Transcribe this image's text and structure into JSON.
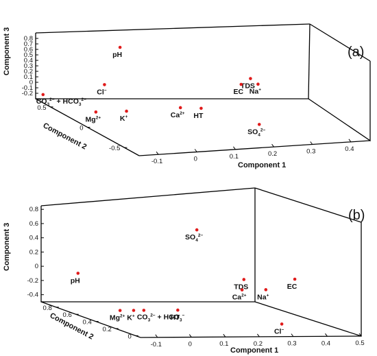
{
  "colors": {
    "points": "#e01b1b",
    "axes": "#000000",
    "background": "#ffffff"
  },
  "chart_data": [
    {
      "type": "scatter",
      "panel_label": "(a)",
      "title": "",
      "xlabel": "Component 1",
      "ylabel": "Component 2",
      "zlabel": "Component 3",
      "xlim": [
        -0.15,
        0.45
      ],
      "ylim": [
        -0.7,
        0.7
      ],
      "zlim": [
        -0.3,
        0.9
      ],
      "xticks": [
        "-0.1",
        "0",
        "0.1",
        "0.2",
        "0.3",
        "0.4"
      ],
      "yticks": [
        "-0.5",
        "0",
        "0.5"
      ],
      "zticks": [
        "-0.2",
        "-0.1",
        "0",
        "0.1",
        "0.2",
        "0.3",
        "0.4",
        "0.5",
        "0.6",
        "0.7",
        "0.8"
      ],
      "grid": false,
      "points": [
        {
          "label": "pH",
          "base": "pH",
          "sup": "",
          "x": 0.05,
          "y": 0.6,
          "z": 0.62
        },
        {
          "label": "Cl-",
          "base": "Cl",
          "sup": "−",
          "x": 0.0,
          "y": 0.55,
          "z": 0.0
        },
        {
          "label": "TDS",
          "base": "TDS",
          "sup": "",
          "x": 0.36,
          "y": 0.45,
          "z": 0.02
        },
        {
          "label": "EC",
          "base": "EC",
          "sup": "",
          "x": 0.33,
          "y": 0.42,
          "z": -0.05
        },
        {
          "label": "Na+",
          "base": "Na",
          "sup": "+",
          "x": 0.37,
          "y": 0.4,
          "z": -0.05
        },
        {
          "label": "Ca2+",
          "base": "Ca",
          "sup": "2+",
          "x": 0.13,
          "y": 0.2,
          "z": -0.22
        },
        {
          "label": "HT",
          "base": "HT",
          "sup": "",
          "x": 0.18,
          "y": 0.18,
          "z": -0.24
        },
        {
          "label": "K+",
          "base": "K",
          "sup": "+",
          "x": -0.01,
          "y": 0.2,
          "z": -0.22
        },
        {
          "label": "Mg2+",
          "base": "Mg",
          "sup": "2+",
          "x": -0.08,
          "y": 0.25,
          "z": -0.24
        },
        {
          "label": "CO32- + HCO32-",
          "base": "CO",
          "sup": "",
          "x": -0.15,
          "y": 0.6,
          "z": -0.15
        },
        {
          "label": "SO42-",
          "base": "SO",
          "sup": "2−",
          "x": 0.21,
          "y": -0.45,
          "z": -0.08
        }
      ],
      "special_labels": {
        "co3_text": "CO",
        "co3_sub": "3",
        "co3_sup": "2−",
        "plus": "+",
        "hco3_text": "HCO",
        "hco3_sub": "3",
        "hco3_sup": "2−",
        "so4_sub": "4"
      }
    },
    {
      "type": "scatter",
      "panel_label": "(b)",
      "title": "",
      "xlabel": "Component 1",
      "ylabel": "Component 2",
      "zlabel": "Component 3",
      "xlim": [
        -0.15,
        0.5
      ],
      "ylim": [
        -0.05,
        0.95
      ],
      "zlim": [
        -0.5,
        0.85
      ],
      "xticks": [
        "-0.1",
        "0",
        "0.1",
        "0.2",
        "0.3",
        "0.4",
        "0.5"
      ],
      "yticks": [
        "0",
        "0.2",
        "0.4",
        "0.6",
        "0.8"
      ],
      "zticks": [
        "-0.4",
        "-0.2",
        "0",
        "0.2",
        "0.4",
        "0.6",
        "0.8"
      ],
      "grid": false,
      "points": [
        {
          "label": "pH",
          "base": "pH",
          "sup": "",
          "x": -0.1,
          "y": 0.75,
          "z": 0.0
        },
        {
          "label": "SO42-",
          "base": "SO",
          "sup": "2−",
          "x": 0.25,
          "y": 0.75,
          "z": 0.6
        },
        {
          "label": "TDS",
          "base": "TDS",
          "sup": "",
          "x": 0.33,
          "y": 0.55,
          "z": 0.0
        },
        {
          "label": "EC",
          "base": "EC",
          "sup": "",
          "x": 0.48,
          "y": 0.55,
          "z": 0.0
        },
        {
          "label": "Ca2+",
          "base": "Ca",
          "sup": "2+",
          "x": 0.31,
          "y": 0.5,
          "z": -0.12
        },
        {
          "label": "Na+",
          "base": "Na",
          "sup": "+",
          "x": 0.38,
          "y": 0.5,
          "z": -0.12
        },
        {
          "label": "Mg2+",
          "base": "Mg",
          "sup": "2+",
          "x": -0.02,
          "y": 0.6,
          "z": -0.45
        },
        {
          "label": "K+",
          "base": "K",
          "sup": "+",
          "x": 0.02,
          "y": 0.6,
          "z": -0.45
        },
        {
          "label": "CO32- + HCO3-",
          "base": "CO",
          "sup": "",
          "x": 0.05,
          "y": 0.6,
          "z": -0.45
        },
        {
          "label": "HT",
          "base": "HT",
          "sup": "",
          "x": 0.15,
          "y": 0.6,
          "z": -0.45
        },
        {
          "label": "Cl-",
          "base": "Cl",
          "sup": "−",
          "x": 0.31,
          "y": 0.1,
          "z": -0.4
        }
      ],
      "special_labels": {
        "co3_text": "CO",
        "co3_sub": "3",
        "co3_sup": "2−",
        "plus": "+",
        "hco3_text": "HCO",
        "hco3_sub": "3",
        "hco3_sup": "−",
        "so4_sub": "4"
      }
    }
  ]
}
